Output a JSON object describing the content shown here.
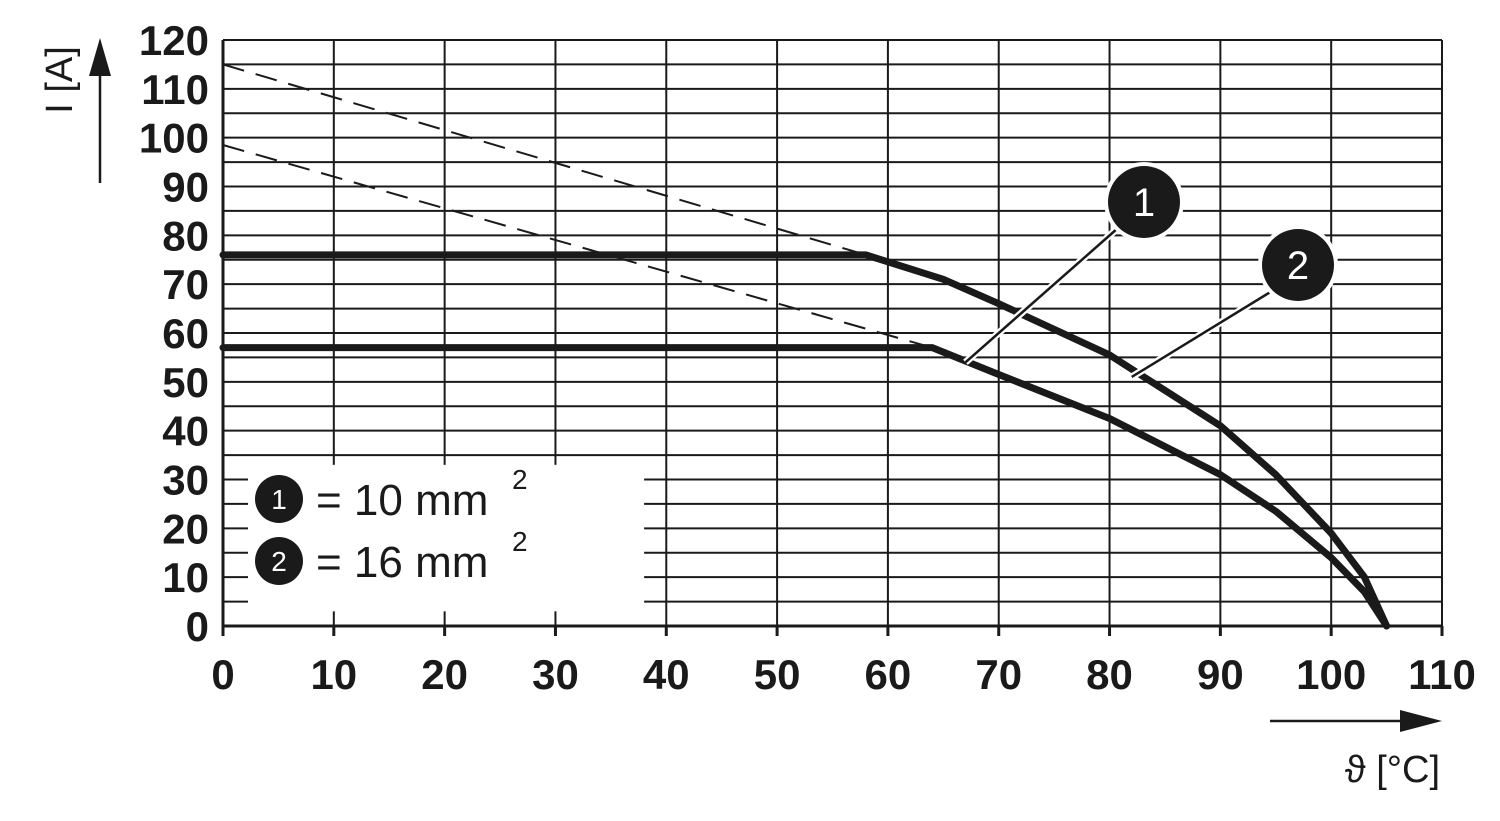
{
  "chart_data": {
    "type": "line",
    "title": "",
    "xlabel": "ϑ [°C]",
    "ylabel": "I [A]",
    "xlim": [
      0,
      110
    ],
    "ylim": [
      0,
      120
    ],
    "x_ticks": [
      0,
      10,
      20,
      30,
      40,
      50,
      60,
      70,
      80,
      90,
      100,
      110
    ],
    "y_ticks": [
      0,
      10,
      20,
      30,
      40,
      50,
      60,
      70,
      80,
      90,
      100,
      110,
      120
    ],
    "grid": true,
    "legend": {
      "placement": "bottom-left",
      "entries": [
        {
          "marker": "1",
          "text": "= 10 mm",
          "sup": "2"
        },
        {
          "marker": "2",
          "text": "= 16 mm",
          "sup": "2"
        }
      ]
    },
    "series": [
      {
        "marker": "1",
        "label_anchor": [
          67,
          54
        ],
        "points": [
          [
            0,
            57
          ],
          [
            60,
            57
          ],
          [
            64,
            57
          ],
          [
            70,
            51.5
          ],
          [
            80,
            42.5
          ],
          [
            90,
            31
          ],
          [
            95,
            23.5
          ],
          [
            100,
            14
          ],
          [
            103,
            7
          ],
          [
            105,
            0
          ]
        ],
        "extrapolation": [
          [
            0,
            98.5
          ],
          [
            64,
            57
          ]
        ]
      },
      {
        "marker": "2",
        "label_anchor": [
          82,
          51
        ],
        "points": [
          [
            0,
            76
          ],
          [
            55,
            76
          ],
          [
            58,
            76
          ],
          [
            65,
            71
          ],
          [
            70,
            66
          ],
          [
            80,
            55.5
          ],
          [
            90,
            41
          ],
          [
            95,
            31
          ],
          [
            100,
            19
          ],
          [
            103,
            10
          ],
          [
            105,
            0
          ]
        ],
        "extrapolation": [
          [
            0,
            115
          ],
          [
            58,
            76
          ]
        ]
      }
    ]
  }
}
